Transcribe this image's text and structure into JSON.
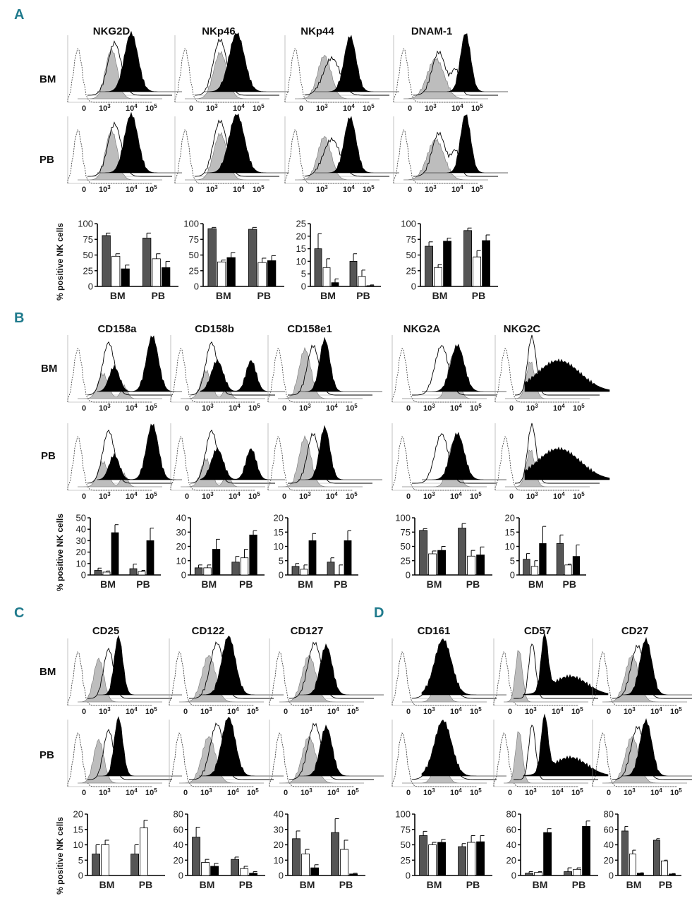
{
  "panel_letters": [
    "A",
    "B",
    "C",
    "D"
  ],
  "row_labels": {
    "bm": "BM",
    "pb": "PB"
  },
  "y_axis_label": "% positive NK cells",
  "histogram_axis": {
    "zero": "0",
    "exp3": "3",
    "exp4": "4",
    "exp5": "5",
    "base": "10"
  },
  "colors": {
    "dark_gray": "#555555",
    "white": "#ffffff",
    "black": "#000000",
    "light_gray": "#bdbdbd",
    "panel_letter": "#1f7a8c"
  },
  "chart_data": [
    {
      "type": "bar",
      "panel": "A",
      "title": "NKG2D",
      "categories": [
        "BM",
        "PB"
      ],
      "ylim": [
        0,
        100
      ],
      "yticks": [
        0,
        25,
        50,
        75,
        100
      ],
      "series": [
        {
          "color": "dark_gray",
          "values": [
            81,
            77
          ],
          "errors": [
            4,
            8
          ]
        },
        {
          "color": "white",
          "values": [
            48,
            44
          ],
          "errors": [
            4,
            8
          ]
        },
        {
          "color": "black",
          "values": [
            28,
            30
          ],
          "errors": [
            6,
            10
          ]
        }
      ]
    },
    {
      "type": "bar",
      "panel": "A",
      "title": "NKp46",
      "categories": [
        "BM",
        "PB"
      ],
      "ylim": [
        0,
        100
      ],
      "yticks": [
        0,
        25,
        50,
        75,
        100
      ],
      "series": [
        {
          "color": "dark_gray",
          "values": [
            92,
            91
          ],
          "errors": [
            2,
            3
          ]
        },
        {
          "color": "white",
          "values": [
            39,
            38
          ],
          "errors": [
            3,
            7
          ]
        },
        {
          "color": "black",
          "values": [
            46,
            41
          ],
          "errors": [
            8,
            8
          ]
        }
      ]
    },
    {
      "type": "bar",
      "panel": "A",
      "title": "NKp44",
      "categories": [
        "BM",
        "PB"
      ],
      "ylim": [
        0,
        25
      ],
      "yticks": [
        0,
        5,
        10,
        15,
        20,
        25
      ],
      "series": [
        {
          "color": "dark_gray",
          "values": [
            15,
            10
          ],
          "errors": [
            6,
            3
          ]
        },
        {
          "color": "white",
          "values": [
            7.5,
            4
          ],
          "errors": [
            3.5,
            2.5
          ]
        },
        {
          "color": "black",
          "values": [
            1.5,
            0.3
          ],
          "errors": [
            1.5,
            0.3
          ]
        }
      ]
    },
    {
      "type": "bar",
      "panel": "A",
      "title": "DNAM-1",
      "categories": [
        "BM",
        "PB"
      ],
      "ylim": [
        0,
        100
      ],
      "yticks": [
        0,
        25,
        50,
        75,
        100
      ],
      "series": [
        {
          "color": "dark_gray",
          "values": [
            64,
            89
          ],
          "errors": [
            7,
            4
          ]
        },
        {
          "color": "white",
          "values": [
            30,
            47
          ],
          "errors": [
            5,
            10
          ]
        },
        {
          "color": "black",
          "values": [
            72,
            73
          ],
          "errors": [
            5,
            9
          ]
        }
      ]
    },
    {
      "type": "bar",
      "panel": "B",
      "title": "CD158a",
      "categories": [
        "BM",
        "PB"
      ],
      "ylim": [
        0,
        50
      ],
      "yticks": [
        0,
        10,
        20,
        30,
        40,
        50
      ],
      "series": [
        {
          "color": "dark_gray",
          "values": [
            4,
            5.5
          ],
          "errors": [
            2,
            4
          ]
        },
        {
          "color": "white",
          "values": [
            2.5,
            3
          ],
          "errors": [
            1,
            1
          ]
        },
        {
          "color": "black",
          "values": [
            37,
            30
          ],
          "errors": [
            7,
            11
          ]
        }
      ]
    },
    {
      "type": "bar",
      "panel": "B",
      "title": "CD158b",
      "categories": [
        "BM",
        "PB"
      ],
      "ylim": [
        0,
        40
      ],
      "yticks": [
        0,
        10,
        20,
        30,
        40
      ],
      "series": [
        {
          "color": "dark_gray",
          "values": [
            5,
            9
          ],
          "errors": [
            2,
            4
          ]
        },
        {
          "color": "white",
          "values": [
            5,
            12
          ],
          "errors": [
            2,
            6
          ]
        },
        {
          "color": "black",
          "values": [
            18,
            28
          ],
          "errors": [
            7,
            3
          ]
        }
      ]
    },
    {
      "type": "bar",
      "panel": "B",
      "title": "CD158e1",
      "categories": [
        "BM",
        "PB"
      ],
      "ylim": [
        0,
        20
      ],
      "yticks": [
        0,
        5,
        10,
        15,
        20
      ],
      "series": [
        {
          "color": "dark_gray",
          "values": [
            3,
            4.5
          ],
          "errors": [
            1,
            1.5
          ]
        },
        {
          "color": "white",
          "values": [
            2,
            0
          ],
          "errors": [
            1.5,
            3.5
          ]
        },
        {
          "color": "black",
          "values": [
            12,
            12
          ],
          "errors": [
            2.5,
            3.5
          ]
        }
      ]
    },
    {
      "type": "bar",
      "panel": "B",
      "title": "NKG2A",
      "categories": [
        "BM",
        "PB"
      ],
      "ylim": [
        0,
        100
      ],
      "yticks": [
        0,
        25,
        50,
        75,
        100
      ],
      "series": [
        {
          "color": "dark_gray",
          "values": [
            78,
            82
          ],
          "errors": [
            3,
            8
          ]
        },
        {
          "color": "white",
          "values": [
            37,
            33
          ],
          "errors": [
            5,
            10
          ]
        },
        {
          "color": "black",
          "values": [
            43,
            35
          ],
          "errors": [
            7,
            14
          ]
        }
      ]
    },
    {
      "type": "bar",
      "panel": "B",
      "title": "NKG2C",
      "categories": [
        "BM",
        "PB"
      ],
      "ylim": [
        0,
        20
      ],
      "yticks": [
        0,
        5,
        10,
        15,
        20
      ],
      "series": [
        {
          "color": "dark_gray",
          "values": [
            5.5,
            11
          ],
          "errors": [
            2,
            3
          ]
        },
        {
          "color": "white",
          "values": [
            3,
            3.5
          ],
          "errors": [
            2,
            0.3
          ]
        },
        {
          "color": "black",
          "values": [
            11,
            6.5
          ],
          "errors": [
            6,
            4
          ]
        }
      ]
    },
    {
      "type": "bar",
      "panel": "C",
      "title": "CD25",
      "categories": [
        "BM",
        "PB"
      ],
      "ylim": [
        0,
        20
      ],
      "yticks": [
        0,
        5,
        10,
        15,
        20
      ],
      "series": [
        {
          "color": "dark_gray",
          "values": [
            7,
            7
          ],
          "errors": [
            3,
            3
          ]
        },
        {
          "color": "white",
          "values": [
            10,
            15.5
          ],
          "errors": [
            1.5,
            2.5
          ]
        },
        {
          "color": "black",
          "values": [
            0,
            0
          ],
          "errors": [
            0,
            0
          ]
        }
      ]
    },
    {
      "type": "bar",
      "panel": "C",
      "title": "CD122",
      "categories": [
        "BM",
        "PB"
      ],
      "ylim": [
        0,
        80
      ],
      "yticks": [
        0,
        20,
        40,
        60,
        80
      ],
      "series": [
        {
          "color": "dark_gray",
          "values": [
            50,
            21
          ],
          "errors": [
            13,
            3
          ]
        },
        {
          "color": "white",
          "values": [
            17,
            9
          ],
          "errors": [
            4,
            3
          ]
        },
        {
          "color": "black",
          "values": [
            12,
            3
          ],
          "errors": [
            4,
            2
          ]
        }
      ]
    },
    {
      "type": "bar",
      "panel": "C",
      "title": "CD127",
      "categories": [
        "BM",
        "PB"
      ],
      "ylim": [
        0,
        40
      ],
      "yticks": [
        0,
        10,
        20,
        30,
        40
      ],
      "series": [
        {
          "color": "dark_gray",
          "values": [
            24,
            28
          ],
          "errors": [
            5,
            9
          ]
        },
        {
          "color": "white",
          "values": [
            14,
            17
          ],
          "errors": [
            3,
            6
          ]
        },
        {
          "color": "black",
          "values": [
            5,
            1
          ],
          "errors": [
            2,
            0.5
          ]
        }
      ]
    },
    {
      "type": "bar",
      "panel": "D",
      "title": "CD161",
      "categories": [
        "BM",
        "PB"
      ],
      "ylim": [
        0,
        100
      ],
      "yticks": [
        0,
        25,
        50,
        75,
        100
      ],
      "series": [
        {
          "color": "dark_gray",
          "values": [
            65,
            47
          ],
          "errors": [
            7,
            5
          ]
        },
        {
          "color": "white",
          "values": [
            50,
            54
          ],
          "errors": [
            4,
            11
          ]
        },
        {
          "color": "black",
          "values": [
            54,
            55
          ],
          "errors": [
            5,
            10
          ]
        }
      ]
    },
    {
      "type": "bar",
      "panel": "D",
      "title": "CD57",
      "categories": [
        "BM",
        "PB"
      ],
      "ylim": [
        0,
        80
      ],
      "yticks": [
        0,
        20,
        40,
        60,
        80
      ],
      "series": [
        {
          "color": "dark_gray",
          "values": [
            3,
            5
          ],
          "errors": [
            2,
            5
          ]
        },
        {
          "color": "white",
          "values": [
            4,
            8
          ],
          "errors": [
            1,
            2
          ]
        },
        {
          "color": "black",
          "values": [
            56,
            64
          ],
          "errors": [
            5,
            7
          ]
        }
      ]
    },
    {
      "type": "bar",
      "panel": "D",
      "title": "CD27",
      "categories": [
        "BM",
        "PB"
      ],
      "ylim": [
        0,
        80
      ],
      "yticks": [
        0,
        20,
        40,
        60,
        80
      ],
      "series": [
        {
          "color": "dark_gray",
          "values": [
            58,
            46
          ],
          "errors": [
            6,
            2
          ]
        },
        {
          "color": "white",
          "values": [
            28,
            19
          ],
          "errors": [
            5,
            1
          ]
        },
        {
          "color": "black",
          "values": [
            3,
            2
          ],
          "errors": [
            0.5,
            0.5
          ]
        }
      ]
    }
  ]
}
